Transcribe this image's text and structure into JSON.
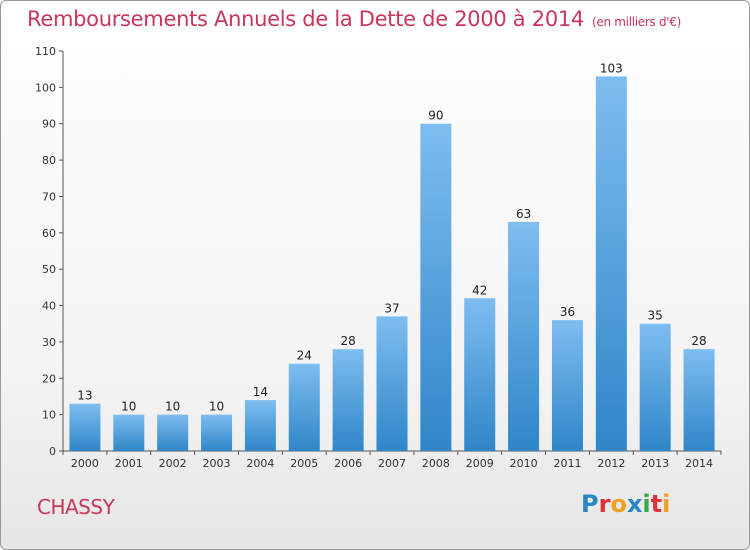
{
  "title": "Remboursements Annuels de la Dette de 2000 à 2014",
  "unit_note": "(en milliers d'€)",
  "commune": "CHASSY",
  "logo": {
    "text": "Proxiti",
    "letters": [
      "P",
      "r",
      "o",
      "x",
      "i",
      "t",
      "i"
    ],
    "colors": [
      "#2b86c8",
      "#e0303a",
      "#f0a020",
      "#2b86c8",
      "#39a845",
      "#e0303a",
      "#f0a020"
    ]
  },
  "colors": {
    "bar_top": "#7ebdf0",
    "bar_bottom": "#2f86c8",
    "title": "#c8365a"
  },
  "chart_data": {
    "type": "bar",
    "title": "Remboursements Annuels de la Dette de 2000 à 2014",
    "xlabel": "",
    "ylabel": "",
    "categories": [
      "2000",
      "2001",
      "2002",
      "2003",
      "2004",
      "2005",
      "2006",
      "2007",
      "2008",
      "2009",
      "2010",
      "2011",
      "2012",
      "2013",
      "2014"
    ],
    "values": [
      13,
      10,
      10,
      10,
      14,
      24,
      28,
      37,
      90,
      42,
      63,
      36,
      103,
      35,
      28
    ],
    "ylim": [
      0,
      110
    ],
    "yticks": [
      0,
      10,
      20,
      30,
      40,
      50,
      60,
      70,
      80,
      90,
      100,
      110
    ],
    "grid": false
  }
}
